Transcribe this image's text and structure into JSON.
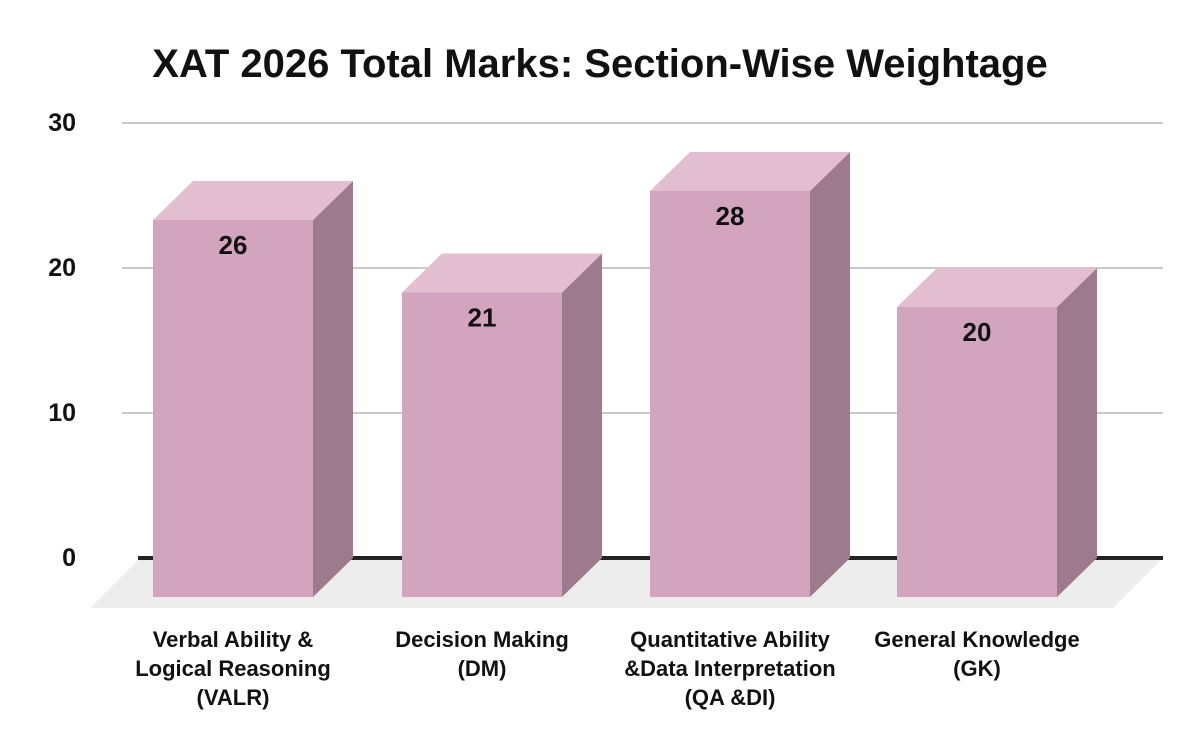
{
  "chart_data": {
    "type": "bar",
    "style": "3d-column",
    "title": "XAT 2026 Total Marks: Section-Wise Weightage",
    "categories": [
      [
        "Verbal Ability &",
        "Logical Reasoning",
        "(VALR)"
      ],
      [
        "Decision Making",
        "(DM)"
      ],
      [
        "Quantitative Ability",
        "&Data Interpretation",
        "(QA &DI)"
      ],
      [
        "General Knowledge",
        "(GK)"
      ]
    ],
    "values": [
      26,
      21,
      28,
      20
    ],
    "value_labels": [
      "26",
      "21",
      "28",
      "20"
    ],
    "yticks": [
      0,
      10,
      20,
      30
    ],
    "ylim": [
      0,
      30
    ],
    "xlabel": "",
    "ylabel": "",
    "grid": true,
    "legend": false,
    "colors": {
      "bar_front": "#d3a4bd",
      "bar_top": "#e2bed0",
      "bar_side": "#9e7a8f",
      "floor": "#ededed",
      "gridline": "#c9c9c9",
      "axis": "#222222",
      "text": "#111111",
      "background": "#ffffff"
    }
  }
}
